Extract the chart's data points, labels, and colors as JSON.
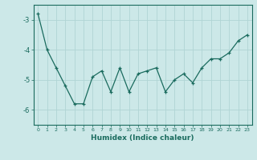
{
  "x": [
    0,
    1,
    2,
    3,
    4,
    5,
    6,
    7,
    8,
    9,
    10,
    11,
    12,
    13,
    14,
    15,
    16,
    17,
    18,
    19,
    20,
    21,
    22,
    23
  ],
  "y": [
    -2.8,
    -4.0,
    -4.6,
    -5.2,
    -5.8,
    -5.8,
    -4.9,
    -4.7,
    -5.4,
    -4.6,
    -5.4,
    -4.8,
    -4.7,
    -4.6,
    -5.4,
    -5.0,
    -4.8,
    -5.1,
    -4.6,
    -4.3,
    -4.3,
    -4.1,
    -3.7,
    -3.5
  ],
  "xlabel": "Humidex (Indice chaleur)",
  "ylim": [
    -6.5,
    -2.5
  ],
  "xlim": [
    -0.5,
    23.5
  ],
  "yticks": [
    -6,
    -5,
    -4,
    -3
  ],
  "xticks": [
    0,
    1,
    2,
    3,
    4,
    5,
    6,
    7,
    8,
    9,
    10,
    11,
    12,
    13,
    14,
    15,
    16,
    17,
    18,
    19,
    20,
    21,
    22,
    23
  ],
  "line_color": "#1a6b5e",
  "marker": "+",
  "bg_color": "#cce8e8",
  "grid_color": "#b0d4d4",
  "title": ""
}
